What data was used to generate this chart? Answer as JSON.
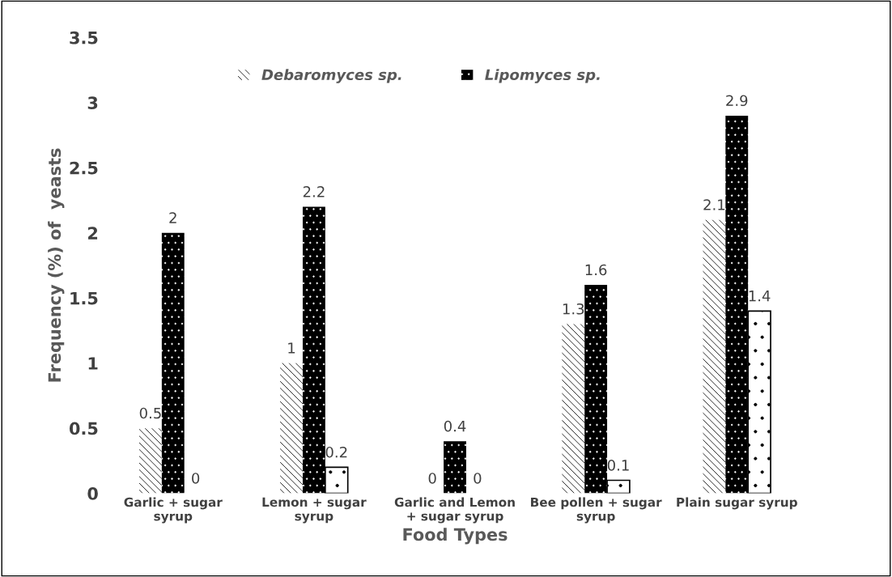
{
  "chart_data": {
    "type": "bar",
    "xlabel": "Food Types",
    "ylabel": "Frequency (%) of  yeasts",
    "categories": [
      "Garlic + sugar\nsyrup",
      "Lemon + sugar\nsyrup",
      "Garlic and Lemon\n+ sugar syrup",
      "Bee pollen + sugar\nsyrup",
      "Plain sugar syrup"
    ],
    "series": [
      {
        "name": "Debaromyces sp.",
        "color": "#ffffff",
        "values": [
          0.5,
          1,
          0,
          1.3,
          2.1
        ]
      },
      {
        "name": "Lipomyces sp.",
        "color": "#000000",
        "values": [
          2,
          2.2,
          0.4,
          1.6,
          2.9
        ]
      },
      {
        "color": "#ffffff",
        "values": [
          0,
          0.2,
          0,
          0.1,
          1.4
        ]
      }
    ],
    "ylim": [
      0,
      3.5
    ],
    "yticks": [
      0,
      0.5,
      1,
      1.5,
      2,
      2.5,
      3,
      3.5
    ],
    "data_labels": true,
    "legend": "top",
    "grid": false
  }
}
